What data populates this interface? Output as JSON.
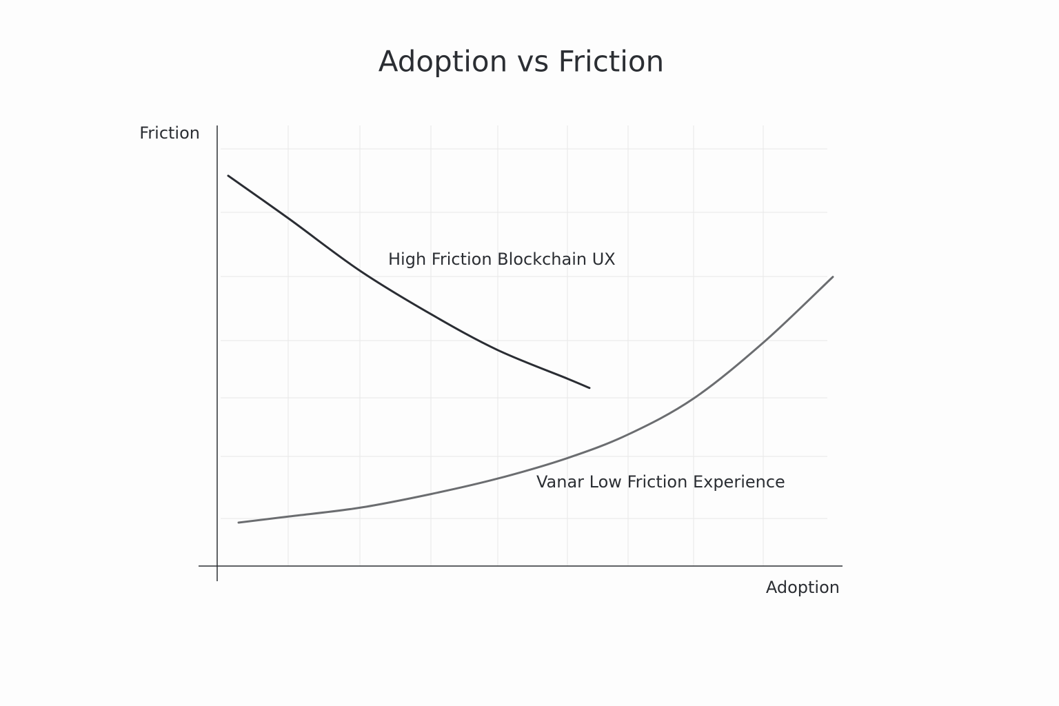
{
  "chart_data": {
    "type": "line",
    "title": "Adoption vs Friction",
    "x_label": "Adoption",
    "y_label": "Friction",
    "xlim": [
      0,
      9
    ],
    "ylim": [
      0,
      7
    ],
    "grid": true,
    "annotations": [
      "High Friction Blockchain UX",
      "Vanar Low Friction Experience"
    ],
    "series": [
      {
        "color": "#2a2d33",
        "x": [
          0.16,
          1.05,
          2.07,
          3.1,
          4.07,
          5.08,
          5.4
        ],
        "values": [
          6.29,
          5.59,
          4.76,
          4.06,
          3.48,
          3.02,
          2.87
        ]
      },
      {
        "color": "#6b6d70",
        "x": [
          0.31,
          1.05,
          2.07,
          3.1,
          4.07,
          5.08,
          5.96,
          6.91,
          7.92,
          8.93
        ],
        "values": [
          0.7,
          0.8,
          0.94,
          1.16,
          1.41,
          1.74,
          2.12,
          2.7,
          3.6,
          4.66
        ]
      }
    ]
  }
}
